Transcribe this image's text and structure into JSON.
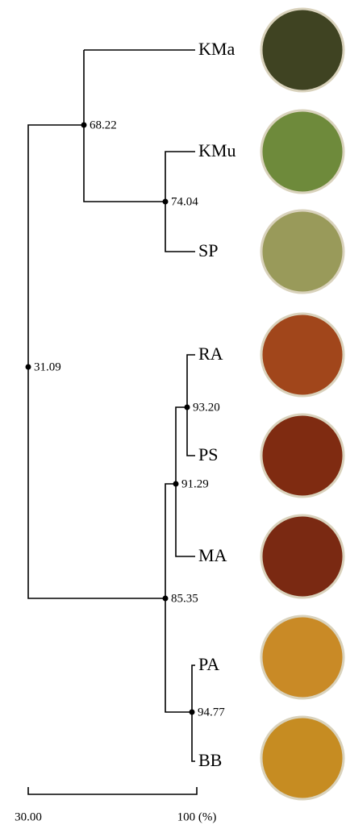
{
  "leaves": [
    "KMa",
    "KMu",
    "SP",
    "RA",
    "PS",
    "MA",
    "PA",
    "BB"
  ],
  "nodes": [
    "68.22",
    "74.04",
    "31.09",
    "93.20",
    "91.29",
    "85.35",
    "94.77"
  ],
  "scale": {
    "start": "30.00",
    "end": "100 (%)"
  }
}
